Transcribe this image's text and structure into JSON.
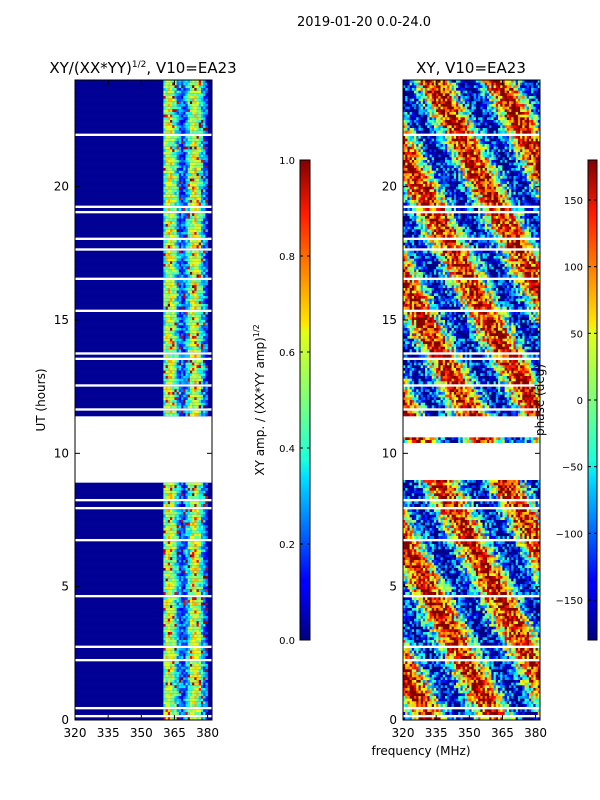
{
  "suptitle": "2019-01-20 0.0-24.0",
  "xlabel": "frequency (MHz)",
  "chart_data": [
    {
      "type": "heatmap",
      "title_main": "XY/(XX*YY)",
      "title_sup": "1/2",
      "title_rest": ", V10=EA23",
      "ylabel": "UT (hours)",
      "xlim": [
        320,
        382
      ],
      "ylim": [
        0,
        24
      ],
      "xticks": [
        320,
        335,
        350,
        365,
        380
      ],
      "yticks": [
        0,
        5,
        10,
        15,
        20
      ],
      "xtick_labels": [
        "320",
        "335",
        "350",
        "365",
        "380"
      ],
      "ytick_labels": [
        "0",
        "5",
        "10",
        "15",
        "20"
      ],
      "colorbar": {
        "label_main": "XY amp. / (XX*YY amp)",
        "label_sup": "1/2",
        "range": [
          0.0,
          1.0
        ],
        "ticks": [
          0.0,
          0.2,
          0.4,
          0.6,
          0.8,
          1.0
        ],
        "tick_labels": [
          "0.0",
          "0.2",
          "0.4",
          "0.6",
          "0.8",
          "1.0"
        ],
        "colormap": "jet"
      },
      "data_gaps_ut": [
        [
          8.9,
          11.4
        ]
      ],
      "high_amplitude_band_mhz": [
        360,
        380
      ],
      "background_value": 0.0
    },
    {
      "type": "heatmap",
      "title": "XY, V10=EA23",
      "xlim": [
        320,
        382
      ],
      "ylim": [
        0,
        24
      ],
      "xticks": [
        320,
        335,
        350,
        365,
        380
      ],
      "yticks": [
        0,
        5,
        10,
        15,
        20
      ],
      "xtick_labels": [
        "320",
        "335",
        "350",
        "365",
        "380"
      ],
      "ytick_labels": [
        "0",
        "5",
        "10",
        "15",
        "20"
      ],
      "colorbar": {
        "label": "phase (deg)",
        "range": [
          -180,
          180
        ],
        "ticks": [
          -150,
          -100,
          -50,
          0,
          50,
          100,
          150
        ],
        "tick_labels": [
          "−150",
          "−100",
          "−50",
          "0",
          "50",
          "100",
          "150"
        ],
        "colormap": "jet"
      },
      "data_gaps_ut": [
        [
          9.0,
          10.4
        ],
        [
          10.6,
          11.4
        ]
      ]
    }
  ]
}
